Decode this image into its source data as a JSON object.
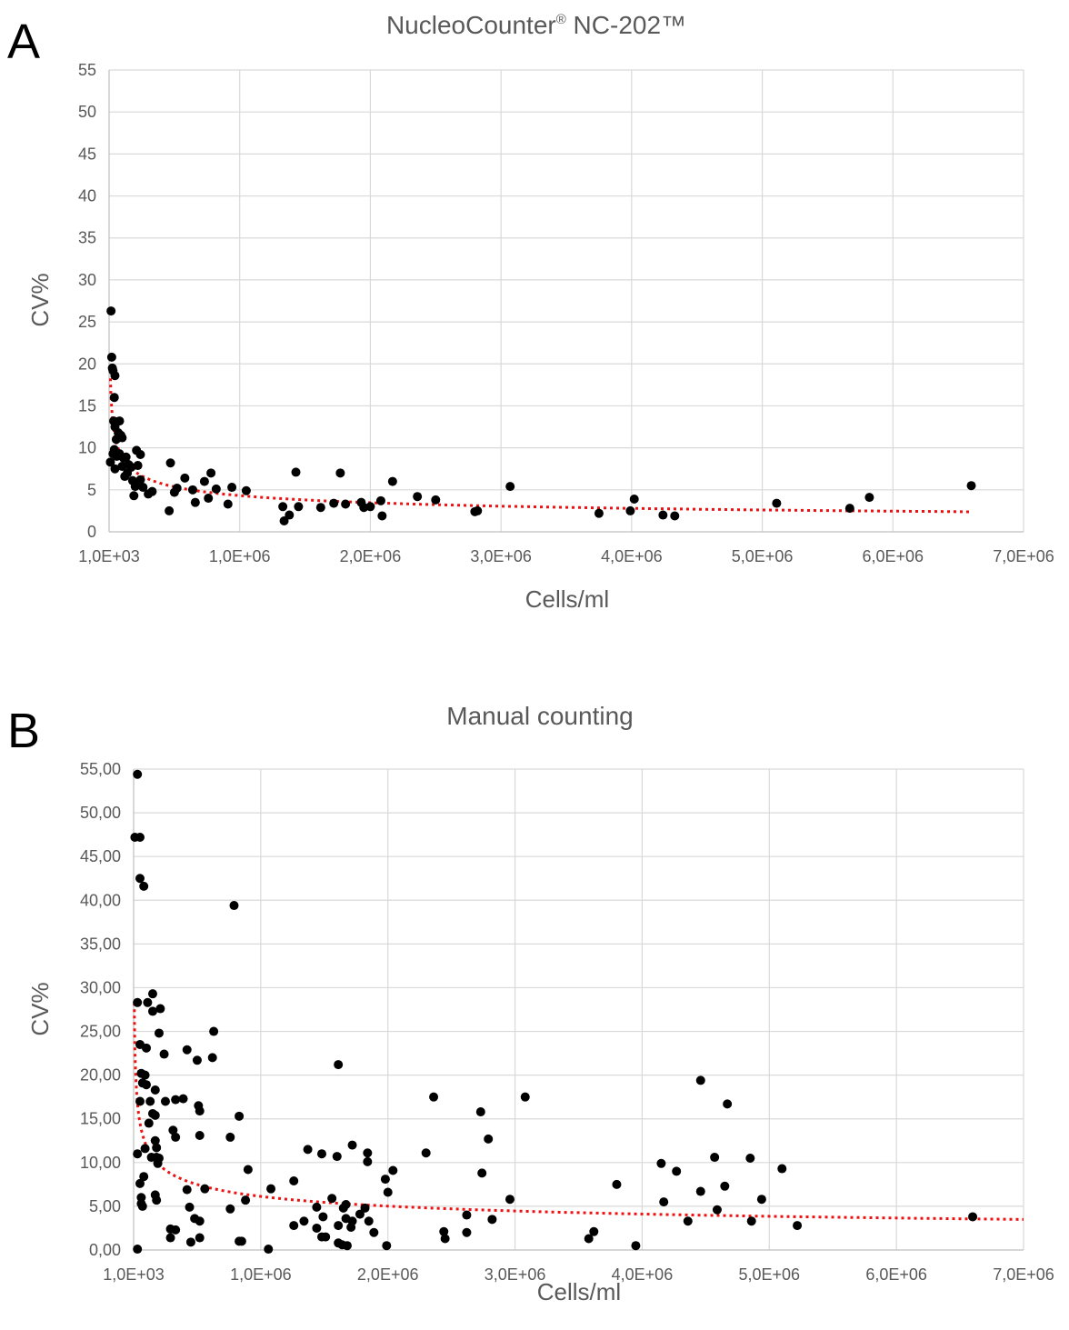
{
  "chart_data": [
    {
      "type": "scatter",
      "panel_label": "A",
      "title": "NucleoCounter",
      "title_sup": "®",
      "title_suffix": " NC-202™",
      "xlabel": "Cells/ml",
      "ylabel": "CV%",
      "xlim": [
        0,
        7000000
      ],
      "ylim": [
        0,
        55
      ],
      "x_ticks": [
        0,
        1000000,
        2000000,
        3000000,
        4000000,
        5000000,
        6000000,
        7000000
      ],
      "x_tick_labels": [
        "1,0E+03",
        "1,0E+06",
        "2,0E+06",
        "3,0E+06",
        "4,0E+06",
        "5,0E+06",
        "6,0E+06",
        "7,0E+06"
      ],
      "y_ticks": [
        0,
        5,
        10,
        15,
        20,
        25,
        30,
        35,
        40,
        45,
        50,
        55
      ],
      "y_tick_labels": [
        "0",
        "5",
        "10",
        "15",
        "20",
        "25",
        "30",
        "35",
        "40",
        "45",
        "50",
        "55"
      ],
      "grid": true,
      "trendline": {
        "type": "power",
        "color": "#ee1111",
        "style": "dotted",
        "x_start": 10000,
        "x_end": 6600000
      },
      "colors": {
        "points": "#000000",
        "trend": "#ee1111",
        "grid": "#d9d9d9",
        "text": "#595959"
      },
      "points": [
        [
          15000,
          26.3
        ],
        [
          20000,
          20.8
        ],
        [
          25000,
          19.5
        ],
        [
          30000,
          19.2
        ],
        [
          45000,
          18.6
        ],
        [
          40000,
          16.0
        ],
        [
          10000,
          8.3
        ],
        [
          35000,
          13.2
        ],
        [
          45000,
          12.5
        ],
        [
          60000,
          13.1
        ],
        [
          70000,
          11.8
        ],
        [
          80000,
          13.2
        ],
        [
          90000,
          11.5
        ],
        [
          100000,
          11.2
        ],
        [
          55000,
          11.0
        ],
        [
          40000,
          9.8
        ],
        [
          30000,
          9.3
        ],
        [
          45000,
          7.5
        ],
        [
          60000,
          9.0
        ],
        [
          80000,
          9.3
        ],
        [
          110000,
          8.8
        ],
        [
          130000,
          8.9
        ],
        [
          100000,
          7.8
        ],
        [
          150000,
          8.0
        ],
        [
          140000,
          7.0
        ],
        [
          170000,
          7.7
        ],
        [
          220000,
          7.9
        ],
        [
          240000,
          6.2
        ],
        [
          120000,
          6.6
        ],
        [
          180000,
          6.1
        ],
        [
          200000,
          5.4
        ],
        [
          230000,
          5.7
        ],
        [
          260000,
          5.3
        ],
        [
          190000,
          4.3
        ],
        [
          300000,
          4.5
        ],
        [
          330000,
          4.8
        ],
        [
          210000,
          9.7
        ],
        [
          240000,
          9.2
        ],
        [
          470000,
          8.2
        ],
        [
          580000,
          6.4
        ],
        [
          730000,
          6.0
        ],
        [
          780000,
          7.0
        ],
        [
          460000,
          2.5
        ],
        [
          500000,
          4.7
        ],
        [
          520000,
          5.2
        ],
        [
          640000,
          5.0
        ],
        [
          660000,
          3.5
        ],
        [
          760000,
          4.0
        ],
        [
          820000,
          5.1
        ],
        [
          910000,
          3.3
        ],
        [
          940000,
          5.3
        ],
        [
          1050000,
          4.9
        ],
        [
          1330000,
          3.0
        ],
        [
          1340000,
          1.3
        ],
        [
          1380000,
          2.0
        ],
        [
          1430000,
          7.1
        ],
        [
          1450000,
          3.0
        ],
        [
          1620000,
          2.9
        ],
        [
          1720000,
          3.4
        ],
        [
          1770000,
          7.0
        ],
        [
          1810000,
          3.3
        ],
        [
          1930000,
          3.5
        ],
        [
          1950000,
          2.9
        ],
        [
          2000000,
          3.0
        ],
        [
          2080000,
          3.7
        ],
        [
          2090000,
          1.9
        ],
        [
          2170000,
          6.0
        ],
        [
          2360000,
          4.2
        ],
        [
          2500000,
          3.8
        ],
        [
          2800000,
          2.4
        ],
        [
          2820000,
          2.5
        ],
        [
          3070000,
          5.4
        ],
        [
          3750000,
          2.2
        ],
        [
          3990000,
          2.5
        ],
        [
          4020000,
          3.9
        ],
        [
          4240000,
          2.0
        ],
        [
          4330000,
          1.9
        ],
        [
          5110000,
          3.4
        ],
        [
          5670000,
          2.8
        ],
        [
          5820000,
          4.1
        ],
        [
          6600000,
          5.5
        ]
      ]
    },
    {
      "type": "scatter",
      "panel_label": "B",
      "title": "Manual counting",
      "xlabel": "Cells/ml",
      "ylabel": "CV%",
      "xlim": [
        0,
        7000000
      ],
      "ylim": [
        0,
        55
      ],
      "x_ticks": [
        0,
        1000000,
        2000000,
        3000000,
        4000000,
        5000000,
        6000000,
        7000000
      ],
      "x_tick_labels": [
        "1,0E+03",
        "1,0E+06",
        "2,0E+06",
        "3,0E+06",
        "4,0E+06",
        "5,0E+06",
        "6,0E+06",
        "7,0E+06"
      ],
      "y_ticks": [
        0,
        5,
        10,
        15,
        20,
        25,
        30,
        35,
        40,
        45,
        50,
        55
      ],
      "y_tick_labels": [
        "0,00",
        "5,00",
        "10,00",
        "15,00",
        "20,00",
        "25,00",
        "30,00",
        "35,00",
        "40,00",
        "45,00",
        "50,00",
        "55,00"
      ],
      "grid": true,
      "trendline": {
        "type": "power",
        "color": "#ee1111",
        "style": "dotted",
        "x_start": 5000,
        "x_end": 7000000
      },
      "colors": {
        "points": "#000000",
        "trend": "#ee1111",
        "grid": "#d9d9d9",
        "text": "#595959"
      },
      "points": [
        [
          30000,
          54.4
        ],
        [
          10000,
          47.2
        ],
        [
          50000,
          47.2
        ],
        [
          50000,
          42.5
        ],
        [
          80000,
          41.6
        ],
        [
          790000,
          39.4
        ],
        [
          30000,
          28.3
        ],
        [
          110000,
          28.3
        ],
        [
          150000,
          29.3
        ],
        [
          150000,
          27.3
        ],
        [
          210000,
          27.6
        ],
        [
          200000,
          24.8
        ],
        [
          630000,
          25.0
        ],
        [
          620000,
          22.0
        ],
        [
          420000,
          22.9
        ],
        [
          500000,
          21.7
        ],
        [
          240000,
          22.4
        ],
        [
          100000,
          23.1
        ],
        [
          50000,
          23.5
        ],
        [
          60000,
          20.2
        ],
        [
          90000,
          20.0
        ],
        [
          100000,
          18.9
        ],
        [
          70000,
          19.1
        ],
        [
          170000,
          18.3
        ],
        [
          1610000,
          21.2
        ],
        [
          2360000,
          17.5
        ],
        [
          3080000,
          17.5
        ],
        [
          4460000,
          19.4
        ],
        [
          4670000,
          16.7
        ],
        [
          50000,
          17.0
        ],
        [
          130000,
          17.0
        ],
        [
          250000,
          17.0
        ],
        [
          330000,
          17.2
        ],
        [
          390000,
          17.3
        ],
        [
          510000,
          16.5
        ],
        [
          520000,
          15.9
        ],
        [
          150000,
          15.6
        ],
        [
          170000,
          15.4
        ],
        [
          120000,
          14.5
        ],
        [
          830000,
          15.3
        ],
        [
          2730000,
          15.8
        ],
        [
          310000,
          13.7
        ],
        [
          330000,
          12.9
        ],
        [
          520000,
          13.1
        ],
        [
          760000,
          12.9
        ],
        [
          2790000,
          12.7
        ],
        [
          170000,
          12.5
        ],
        [
          180000,
          11.7
        ],
        [
          90000,
          11.6
        ],
        [
          1370000,
          11.5
        ],
        [
          1480000,
          11.0
        ],
        [
          1720000,
          12.0
        ],
        [
          1840000,
          11.1
        ],
        [
          2300000,
          11.1
        ],
        [
          30000,
          11.0
        ],
        [
          140000,
          10.6
        ],
        [
          180000,
          10.6
        ],
        [
          200000,
          10.5
        ],
        [
          190000,
          9.9
        ],
        [
          1600000,
          10.7
        ],
        [
          1840000,
          10.1
        ],
        [
          4150000,
          9.9
        ],
        [
          4570000,
          10.6
        ],
        [
          4850000,
          10.5
        ],
        [
          900000,
          9.2
        ],
        [
          2040000,
          9.1
        ],
        [
          2740000,
          8.8
        ],
        [
          4270000,
          9.0
        ],
        [
          5100000,
          9.3
        ],
        [
          80000,
          8.4
        ],
        [
          1260000,
          7.9
        ],
        [
          1980000,
          8.1
        ],
        [
          3800000,
          7.5
        ],
        [
          50000,
          7.6
        ],
        [
          1080000,
          7.0
        ],
        [
          420000,
          6.9
        ],
        [
          560000,
          7.0
        ],
        [
          4460000,
          6.7
        ],
        [
          4650000,
          7.3
        ],
        [
          170000,
          6.3
        ],
        [
          180000,
          5.7
        ],
        [
          60000,
          6.0
        ],
        [
          60000,
          5.3
        ],
        [
          70000,
          5.0
        ],
        [
          880000,
          5.7
        ],
        [
          2000000,
          6.6
        ],
        [
          2960000,
          5.8
        ],
        [
          4170000,
          5.5
        ],
        [
          4940000,
          5.8
        ],
        [
          440000,
          4.9
        ],
        [
          760000,
          4.7
        ],
        [
          1440000,
          4.9
        ],
        [
          1560000,
          5.9
        ],
        [
          1650000,
          4.8
        ],
        [
          1670000,
          5.2
        ],
        [
          1780000,
          4.1
        ],
        [
          1820000,
          4.8
        ],
        [
          2620000,
          4.0
        ],
        [
          4590000,
          4.6
        ],
        [
          480000,
          3.6
        ],
        [
          520000,
          3.3
        ],
        [
          1340000,
          3.3
        ],
        [
          1490000,
          3.8
        ],
        [
          1670000,
          3.6
        ],
        [
          1720000,
          3.3
        ],
        [
          2820000,
          3.5
        ],
        [
          4360000,
          3.3
        ],
        [
          4860000,
          3.3
        ],
        [
          1260000,
          2.8
        ],
        [
          1440000,
          2.5
        ],
        [
          1610000,
          2.8
        ],
        [
          1710000,
          2.6
        ],
        [
          1850000,
          3.3
        ],
        [
          5220000,
          2.8
        ],
        [
          6600000,
          3.8
        ],
        [
          290000,
          2.4
        ],
        [
          330000,
          2.3
        ],
        [
          2440000,
          2.1
        ],
        [
          2620000,
          2.0
        ],
        [
          3620000,
          2.1
        ],
        [
          3580000,
          1.3
        ],
        [
          1890000,
          2.0
        ],
        [
          290000,
          1.4
        ],
        [
          520000,
          1.4
        ],
        [
          1480000,
          1.5
        ],
        [
          1510000,
          1.5
        ],
        [
          2450000,
          1.3
        ],
        [
          450000,
          0.9
        ],
        [
          830000,
          1.0
        ],
        [
          850000,
          1.0
        ],
        [
          1610000,
          0.8
        ],
        [
          1640000,
          0.6
        ],
        [
          1680000,
          0.5
        ],
        [
          1990000,
          0.5
        ],
        [
          3950000,
          0.5
        ],
        [
          30000,
          0.1
        ],
        [
          1060000,
          0.1
        ]
      ]
    }
  ]
}
